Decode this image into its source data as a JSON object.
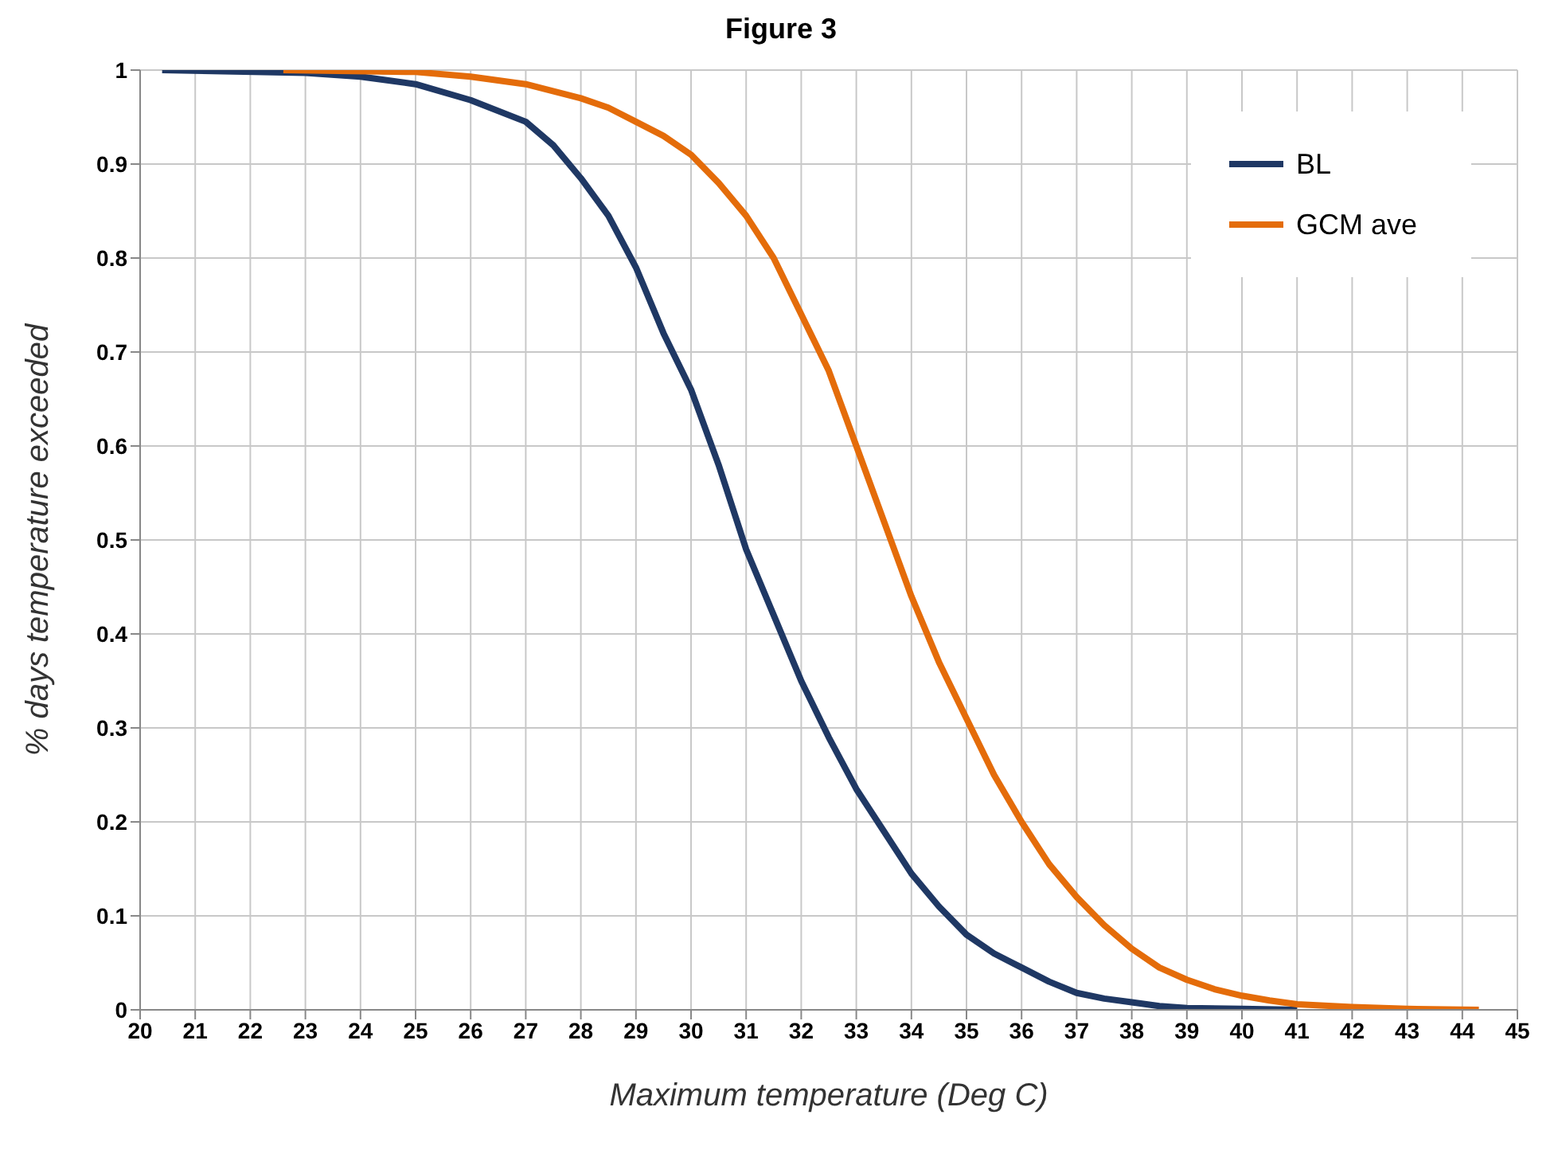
{
  "chart_data": {
    "type": "line",
    "title": "Figure 3",
    "xlabel": "Maximum temperature (Deg C)",
    "ylabel": "% days temperature exceeded",
    "xlim": [
      20,
      45
    ],
    "xticks": [
      20,
      21,
      22,
      23,
      24,
      25,
      26,
      27,
      28,
      29,
      30,
      31,
      32,
      33,
      34,
      35,
      36,
      37,
      38,
      39,
      40,
      41,
      42,
      43,
      44,
      45
    ],
    "ylim": [
      0,
      1
    ],
    "yticks": [
      0,
      0.1,
      0.2,
      0.3,
      0.4,
      0.5,
      0.6,
      0.7,
      0.8,
      0.9,
      1
    ],
    "grid": true,
    "legend": "top right",
    "marker": "none",
    "line_style": "solid",
    "series": [
      {
        "name": "BL",
        "color": "#1f3864",
        "x": [
          20.4,
          23,
          24,
          25,
          26,
          27,
          27.5,
          28,
          28.5,
          29,
          29.5,
          30,
          30.5,
          31,
          31.5,
          32,
          32.5,
          33,
          33.5,
          34,
          34.5,
          35,
          35.5,
          36,
          36.5,
          37,
          37.5,
          38,
          38.5,
          39,
          40,
          41
        ],
        "values": [
          1,
          0.997,
          0.993,
          0.985,
          0.968,
          0.945,
          0.92,
          0.885,
          0.845,
          0.79,
          0.72,
          0.66,
          0.58,
          0.49,
          0.42,
          0.35,
          0.29,
          0.235,
          0.19,
          0.145,
          0.11,
          0.08,
          0.06,
          0.045,
          0.03,
          0.018,
          0.012,
          0.008,
          0.004,
          0.002,
          0.001,
          0
        ]
      },
      {
        "name": "GCM ave",
        "color": "#e46c0a",
        "x": [
          22.6,
          25,
          26,
          27,
          28,
          28.5,
          29,
          29.5,
          30,
          30.5,
          31,
          31.5,
          32,
          32.5,
          33,
          33.5,
          34,
          34.5,
          35,
          35.5,
          36,
          36.5,
          37,
          37.5,
          38,
          38.5,
          39,
          39.5,
          40,
          40.5,
          41,
          42,
          43,
          44.3
        ],
        "values": [
          1,
          0.998,
          0.993,
          0.985,
          0.97,
          0.96,
          0.945,
          0.93,
          0.91,
          0.88,
          0.845,
          0.8,
          0.74,
          0.68,
          0.6,
          0.52,
          0.44,
          0.37,
          0.31,
          0.25,
          0.2,
          0.155,
          0.12,
          0.09,
          0.065,
          0.045,
          0.032,
          0.022,
          0.015,
          0.01,
          0.006,
          0.003,
          0.001,
          0
        ]
      }
    ]
  }
}
